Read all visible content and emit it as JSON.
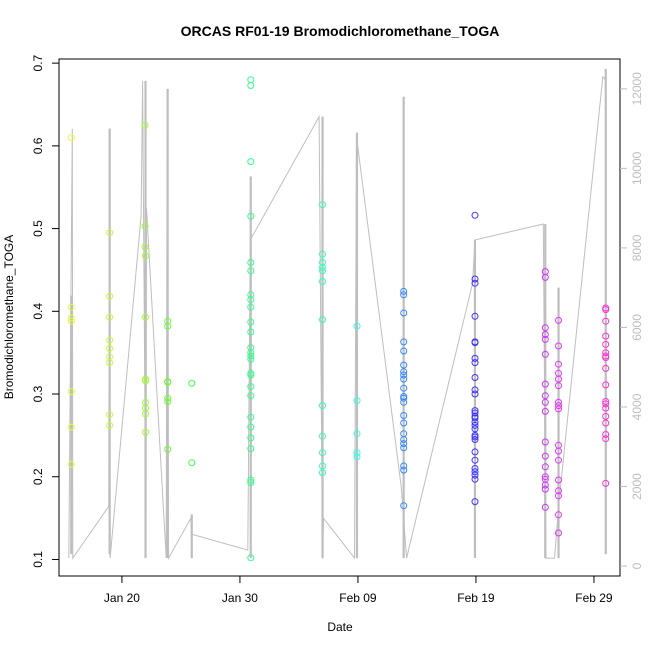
{
  "chart_data": {
    "type": "scatter",
    "title": "ORCAS RF01-19 Bromodichloromethane_TOGA",
    "xlabel": "Date",
    "ylabel": "Bromodichloromethane_TOGA",
    "x_tick_labels": [
      "Jan 20",
      "Jan 30",
      "Feb 09",
      "Feb 19",
      "Feb 29"
    ],
    "x_tick_dates": [
      "2016-01-20",
      "2016-01-30",
      "2016-02-09",
      "2016-02-19",
      "2016-02-29"
    ],
    "xlim": [
      "2016-01-14T16:00",
      "2016-03-02T05:00"
    ],
    "ylim": [
      0.08,
      0.705
    ],
    "y_ticks": [
      0.1,
      0.2,
      0.3,
      0.4,
      0.5,
      0.6,
      0.7
    ],
    "y_tick_labels": [
      "0.1",
      "0.2",
      "0.3",
      "0.4",
      "0.5",
      "0.6",
      "0.7"
    ],
    "y2_ticks": [
      0,
      2000,
      4000,
      6000,
      8000,
      10000,
      12000
    ],
    "y2_tick_labels": [
      "0",
      "2000",
      "4000",
      "6000",
      "8000",
      "10000",
      "12000"
    ],
    "y2lim": [
      -250,
      12750
    ],
    "grid": false,
    "marker": "open-circle",
    "colors": {
      "altitude_line": "#bebebe",
      "axis": "#000000",
      "right_axis": "#bdbdbd",
      "flights": [
        "#e5ff33",
        "#c6ff33",
        "#9fff33",
        "#6aff33",
        "#3dff4d",
        "#33ff8c",
        "#33ffb8",
        "#33ffe6",
        "#33c7ff",
        "#3388ff",
        "#3d33ff",
        "#7a33ff",
        "#d033ff",
        "#e933ff",
        "#ff33d6"
      ]
    },
    "series": [
      {
        "flight": "RF01",
        "color": "#e5ff33",
        "x": [
          "2016-01-15T17:00",
          "2016-01-15T17:00",
          "2016-01-15T17:00",
          "2016-01-15T17:00",
          "2016-01-15T17:00",
          "2016-01-15T17:00",
          "2016-01-15T17:00"
        ],
        "y": [
          0.61,
          0.405,
          0.392,
          0.388,
          0.303,
          0.26,
          0.215
        ]
      },
      {
        "flight": "RF02",
        "color": "#c6ff33",
        "x": [
          "2016-01-18T23:00",
          "2016-01-18T23:00",
          "2016-01-18T23:00",
          "2016-01-18T23:00",
          "2016-01-18T23:00",
          "2016-01-18T23:00",
          "2016-01-18T23:00",
          "2016-01-18T23:00",
          "2016-01-18T23:00"
        ],
        "y": [
          0.495,
          0.418,
          0.393,
          0.365,
          0.355,
          0.345,
          0.338,
          0.275,
          0.262
        ]
      },
      {
        "flight": "RF03",
        "color": "#9fff33",
        "x": [
          "2016-01-21T23:00",
          "2016-01-21T23:00",
          "2016-01-21T23:00",
          "2016-01-22T00:00",
          "2016-01-22T00:00",
          "2016-01-22T00:00",
          "2016-01-22T00:00",
          "2016-01-22T00:00",
          "2016-01-22T00:00",
          "2016-01-22T00:00",
          "2016-01-22T00:00"
        ],
        "y": [
          0.625,
          0.503,
          0.478,
          0.467,
          0.393,
          0.318,
          0.316,
          0.29,
          0.283,
          0.276,
          0.254
        ]
      },
      {
        "flight": "RF04",
        "color": "#6aff33",
        "x": [
          "2016-01-23T21:00",
          "2016-01-23T21:00",
          "2016-01-23T21:00",
          "2016-01-23T21:00",
          "2016-01-23T21:00",
          "2016-01-23T21:00",
          "2016-01-23T21:00"
        ],
        "y": [
          0.388,
          0.382,
          0.315,
          0.314,
          0.295,
          0.291,
          0.233
        ]
      },
      {
        "flight": "RF05",
        "color": "#3dff4d",
        "x": [
          "2016-01-25T22:00",
          "2016-01-25T22:00"
        ],
        "y": [
          0.313,
          0.217
        ]
      },
      {
        "flight": "RF06",
        "color": "#33ff8c",
        "x": [
          "2016-01-30T22:00",
          "2016-01-30T22:00",
          "2016-01-30T22:00",
          "2016-01-30T22:00",
          "2016-01-30T22:00",
          "2016-01-30T22:00",
          "2016-01-30T22:00",
          "2016-01-30T22:00",
          "2016-01-30T22:00",
          "2016-01-30T22:00",
          "2016-01-30T22:00",
          "2016-01-30T22:00",
          "2016-01-30T22:00",
          "2016-01-30T22:00",
          "2016-01-30T22:00",
          "2016-01-30T22:00",
          "2016-01-30T22:00",
          "2016-01-30T22:00",
          "2016-01-30T22:00",
          "2016-01-30T22:00",
          "2016-01-30T22:00",
          "2016-01-30T22:00",
          "2016-01-30T22:00",
          "2016-01-30T22:00",
          "2016-01-30T22:00",
          "2016-01-30T22:00"
        ],
        "y": [
          0.68,
          0.673,
          0.581,
          0.515,
          0.459,
          0.449,
          0.42,
          0.414,
          0.405,
          0.387,
          0.375,
          0.356,
          0.35,
          0.346,
          0.342,
          0.325,
          0.323,
          0.309,
          0.298,
          0.272,
          0.26,
          0.247,
          0.234,
          0.196,
          0.193,
          0.102
        ]
      },
      {
        "flight": "RF07",
        "color": "#33ffb8",
        "x": [
          "2016-02-06T00:00",
          "2016-02-06T00:00",
          "2016-02-06T00:00",
          "2016-02-06T00:00",
          "2016-02-06T00:00",
          "2016-02-06T00:00",
          "2016-02-06T00:00",
          "2016-02-06T00:00",
          "2016-02-06T00:00",
          "2016-02-06T00:00",
          "2016-02-06T00:00",
          "2016-02-06T00:00"
        ],
        "y": [
          0.529,
          0.469,
          0.459,
          0.453,
          0.449,
          0.436,
          0.39,
          0.286,
          0.249,
          0.229,
          0.213,
          0.205
        ]
      },
      {
        "flight": "RF08",
        "color": "#33ffe6",
        "x": [
          "2016-02-08T22:00",
          "2016-02-08T22:00",
          "2016-02-08T22:00",
          "2016-02-08T22:00",
          "2016-02-08T22:00"
        ],
        "y": [
          0.382,
          0.292,
          0.252,
          0.229,
          0.224
        ]
      },
      {
        "flight": "RF09",
        "color": "#3388ff",
        "x": [
          "2016-02-12T21:00",
          "2016-02-12T21:00",
          "2016-02-12T21:00",
          "2016-02-12T21:00",
          "2016-02-12T21:00",
          "2016-02-12T21:00",
          "2016-02-12T21:00",
          "2016-02-12T21:00",
          "2016-02-12T21:00",
          "2016-02-12T21:00",
          "2016-02-12T21:00",
          "2016-02-12T21:00",
          "2016-02-12T21:00",
          "2016-02-12T21:00",
          "2016-02-12T21:00",
          "2016-02-12T21:00",
          "2016-02-12T21:00",
          "2016-02-12T21:00",
          "2016-02-12T21:00",
          "2016-02-12T21:00",
          "2016-02-12T21:00",
          "2016-02-12T21:00"
        ],
        "y": [
          0.424,
          0.42,
          0.398,
          0.363,
          0.335,
          0.327,
          0.323,
          0.318,
          0.307,
          0.297,
          0.295,
          0.29,
          0.274,
          0.265,
          0.252,
          0.245,
          0.24,
          0.235,
          0.213,
          0.208,
          0.165,
          0.352
        ]
      },
      {
        "flight": "RF10",
        "color": "#3d33ff",
        "x": [
          "2016-02-18T22:00",
          "2016-02-18T22:00",
          "2016-02-18T22:00",
          "2016-02-18T22:00",
          "2016-02-18T22:00",
          "2016-02-18T22:00",
          "2016-02-18T22:00",
          "2016-02-18T22:00",
          "2016-02-18T22:00",
          "2016-02-18T22:00",
          "2016-02-18T22:00",
          "2016-02-18T22:00",
          "2016-02-18T22:00",
          "2016-02-18T22:00",
          "2016-02-18T22:00",
          "2016-02-18T22:00",
          "2016-02-18T22:00",
          "2016-02-18T22:00",
          "2016-02-18T22:00",
          "2016-02-18T22:00",
          "2016-02-18T22:00",
          "2016-02-18T22:00",
          "2016-02-18T22:00",
          "2016-02-18T22:00",
          "2016-02-18T22:00",
          "2016-02-18T22:00",
          "2016-02-18T22:00",
          "2016-02-18T22:00"
        ],
        "y": [
          0.516,
          0.439,
          0.434,
          0.394,
          0.363,
          0.343,
          0.338,
          0.32,
          0.305,
          0.3,
          0.28,
          0.277,
          0.273,
          0.271,
          0.266,
          0.262,
          0.258,
          0.25,
          0.248,
          0.245,
          0.23,
          0.22,
          0.21,
          0.206,
          0.202,
          0.197,
          0.17,
          0.362
        ]
      },
      {
        "flight": "RF11",
        "color": "#d033ff",
        "x": [
          "2016-02-24T21:00",
          "2016-02-24T21:00",
          "2016-02-24T21:00",
          "2016-02-24T21:00",
          "2016-02-24T21:00",
          "2016-02-24T21:00",
          "2016-02-24T21:00",
          "2016-02-24T21:00",
          "2016-02-24T21:00",
          "2016-02-24T21:00",
          "2016-02-24T21:00",
          "2016-02-24T21:00",
          "2016-02-24T21:00",
          "2016-02-24T21:00",
          "2016-02-24T21:00",
          "2016-02-24T21:00",
          "2016-02-24T21:00",
          "2016-02-24T21:00"
        ],
        "y": [
          0.448,
          0.441,
          0.38,
          0.372,
          0.366,
          0.348,
          0.312,
          0.298,
          0.29,
          0.279,
          0.242,
          0.225,
          0.212,
          0.2,
          0.197,
          0.19,
          0.185,
          0.163
        ]
      },
      {
        "flight": "RF12",
        "color": "#e933ff",
        "x": [
          "2016-02-26T00:00",
          "2016-02-26T00:00",
          "2016-02-26T00:00",
          "2016-02-26T00:00",
          "2016-02-26T00:00",
          "2016-02-26T00:00",
          "2016-02-26T00:00",
          "2016-02-26T00:00",
          "2016-02-26T00:00",
          "2016-02-26T00:00",
          "2016-02-26T00:00",
          "2016-02-26T00:00",
          "2016-02-26T00:00",
          "2016-02-26T00:00",
          "2016-02-26T00:00",
          "2016-02-26T00:00",
          "2016-02-26T00:00"
        ],
        "y": [
          0.389,
          0.358,
          0.336,
          0.325,
          0.318,
          0.31,
          0.29,
          0.286,
          0.282,
          0.238,
          0.22,
          0.196,
          0.183,
          0.177,
          0.154,
          0.132,
          0.231
        ]
      },
      {
        "flight": "RF13",
        "color": "#ff33d6",
        "x": [
          "2016-03-01T00:00",
          "2016-03-01T00:00",
          "2016-03-01T00:00",
          "2016-03-01T00:00",
          "2016-03-01T00:00",
          "2016-03-01T00:00",
          "2016-03-01T00:00",
          "2016-03-01T00:00",
          "2016-03-01T00:00",
          "2016-03-01T00:00",
          "2016-03-01T00:00",
          "2016-03-01T00:00",
          "2016-03-01T00:00",
          "2016-03-01T00:00",
          "2016-03-01T00:00",
          "2016-03-01T00:00",
          "2016-03-01T00:00",
          "2016-03-01T00:00"
        ],
        "y": [
          0.404,
          0.402,
          0.388,
          0.37,
          0.36,
          0.35,
          0.346,
          0.344,
          0.331,
          0.311,
          0.291,
          0.288,
          0.273,
          0.265,
          0.251,
          0.246,
          0.192,
          0.283
        ]
      }
    ],
    "altitude_trace": {
      "axis": "right",
      "x": [
        "2016-01-15T12:00",
        "2016-01-15T19:00",
        "2016-01-15T20:00",
        "2016-01-18T21:00",
        "2016-01-18T23:00",
        "2016-01-19T00:00",
        "2016-01-21T15:00",
        "2016-01-21T18:00",
        "2016-01-22T01:00",
        "2016-01-22T02:00",
        "2016-01-23T18:00",
        "2016-01-23T20:00",
        "2016-01-23T23:00",
        "2016-01-25T20:00",
        "2016-01-25T22:00",
        "2016-01-30T16:00",
        "2016-01-30T21:00",
        "2016-02-05T17:00",
        "2016-02-06T00:00",
        "2016-02-06T02:00",
        "2016-02-08T17:00",
        "2016-02-08T21:00",
        "2016-02-12T16:00",
        "2016-02-13T03:00",
        "2016-02-18T17:00",
        "2016-02-18T22:00",
        "2016-02-24T17:00",
        "2016-02-24T22:00",
        "2016-02-25T16:00",
        "2016-02-26T00:00",
        "2016-02-29T18:00",
        "2016-03-01T02:00"
      ],
      "y": [
        200,
        11000,
        200,
        1500,
        11000,
        200,
        8800,
        12200,
        200,
        9000,
        200,
        12000,
        200,
        1200,
        800,
        400,
        8200,
        11300,
        200,
        1200,
        200,
        10800,
        2000,
        200,
        7100,
        8200,
        8600,
        200,
        200,
        1500,
        12300,
        12200
      ],
      "spikes": [
        {
          "x": "2016-01-15T17:00",
          "y": [
            300,
            6800
          ]
        },
        {
          "x": "2016-01-18T23:00",
          "y": [
            300,
            11000
          ]
        },
        {
          "x": "2016-01-22T00:00",
          "y": [
            200,
            12200
          ]
        },
        {
          "x": "2016-01-23T21:00",
          "y": [
            200,
            12000
          ]
        },
        {
          "x": "2016-01-25T22:00",
          "y": [
            200,
            1300
          ]
        },
        {
          "x": "2016-01-30T22:00",
          "y": [
            200,
            9800
          ]
        },
        {
          "x": "2016-02-06T00:00",
          "y": [
            200,
            11300
          ]
        },
        {
          "x": "2016-02-08T22:00",
          "y": [
            200,
            10900
          ]
        },
        {
          "x": "2016-02-12T21:00",
          "y": [
            200,
            11800
          ]
        },
        {
          "x": "2016-02-18T22:00",
          "y": [
            200,
            8200
          ]
        },
        {
          "x": "2016-02-24T21:00",
          "y": [
            200,
            8600
          ]
        },
        {
          "x": "2016-02-26T00:00",
          "y": [
            200,
            7000
          ]
        },
        {
          "x": "2016-03-01T00:00",
          "y": [
            300,
            12500
          ]
        }
      ]
    }
  }
}
